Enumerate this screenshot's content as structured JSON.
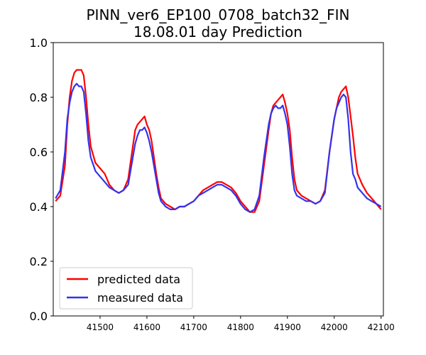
{
  "chart_data": {
    "type": "line",
    "title": "PINN_ver6_EP100_0708_batch32_FIN",
    "subtitle": "18.08.01 day Prediction",
    "xlabel": "",
    "ylabel": "",
    "xlim": [
      41400,
      42105
    ],
    "ylim": [
      0.0,
      1.0
    ],
    "xticks": [
      41500,
      41600,
      41700,
      41800,
      41900,
      42000,
      42100
    ],
    "yticks": [
      0.0,
      0.2,
      0.4,
      0.6,
      0.8,
      1.0
    ],
    "ytick_labels": [
      "0.0",
      "0.2",
      "0.4",
      "0.6",
      "0.8",
      "1.0"
    ],
    "grid": false,
    "legend_position": "lower-left",
    "series": [
      {
        "name": "predicted data",
        "color": "#ff0000",
        "x": [
          41405,
          41415,
          41425,
          41430,
          41435,
          41440,
          41445,
          41450,
          41455,
          41460,
          41465,
          41470,
          41475,
          41480,
          41490,
          41500,
          41510,
          41520,
          41530,
          41540,
          41550,
          41560,
          41570,
          41575,
          41580,
          41585,
          41590,
          41595,
          41600,
          41605,
          41610,
          41615,
          41620,
          41625,
          41630,
          41640,
          41650,
          41660,
          41670,
          41680,
          41690,
          41700,
          41710,
          41720,
          41730,
          41740,
          41750,
          41760,
          41770,
          41780,
          41790,
          41800,
          41810,
          41820,
          41830,
          41840,
          41850,
          41860,
          41865,
          41870,
          41875,
          41880,
          41885,
          41890,
          41895,
          41900,
          41905,
          41910,
          41915,
          41920,
          41930,
          41940,
          41950,
          41960,
          41970,
          41980,
          41990,
          42000,
          42005,
          42010,
          42015,
          42020,
          42025,
          42030,
          42035,
          42040,
          42045,
          42050,
          42060,
          42070,
          42080,
          42090,
          42100
        ],
        "y": [
          0.42,
          0.44,
          0.55,
          0.7,
          0.8,
          0.86,
          0.89,
          0.9,
          0.9,
          0.9,
          0.88,
          0.8,
          0.7,
          0.62,
          0.56,
          0.54,
          0.52,
          0.48,
          0.46,
          0.45,
          0.46,
          0.5,
          0.62,
          0.68,
          0.7,
          0.71,
          0.72,
          0.73,
          0.7,
          0.68,
          0.64,
          0.58,
          0.52,
          0.47,
          0.43,
          0.41,
          0.4,
          0.39,
          0.4,
          0.4,
          0.41,
          0.42,
          0.44,
          0.46,
          0.47,
          0.48,
          0.49,
          0.49,
          0.48,
          0.47,
          0.45,
          0.42,
          0.4,
          0.38,
          0.38,
          0.42,
          0.55,
          0.68,
          0.74,
          0.77,
          0.78,
          0.79,
          0.8,
          0.81,
          0.78,
          0.74,
          0.68,
          0.58,
          0.5,
          0.46,
          0.44,
          0.43,
          0.42,
          0.41,
          0.42,
          0.46,
          0.6,
          0.72,
          0.76,
          0.8,
          0.82,
          0.83,
          0.84,
          0.8,
          0.73,
          0.66,
          0.58,
          0.52,
          0.48,
          0.45,
          0.43,
          0.41,
          0.39
        ]
      },
      {
        "name": "measured data",
        "color": "#3333ee",
        "x": [
          41405,
          41415,
          41425,
          41430,
          41435,
          41440,
          41445,
          41450,
          41455,
          41460,
          41465,
          41470,
          41475,
          41480,
          41490,
          41500,
          41510,
          41520,
          41530,
          41540,
          41550,
          41560,
          41570,
          41575,
          41580,
          41585,
          41590,
          41595,
          41600,
          41605,
          41610,
          41615,
          41620,
          41625,
          41630,
          41640,
          41650,
          41660,
          41670,
          41680,
          41690,
          41700,
          41710,
          41720,
          41730,
          41740,
          41750,
          41760,
          41770,
          41780,
          41790,
          41800,
          41810,
          41820,
          41830,
          41840,
          41850,
          41860,
          41865,
          41870,
          41875,
          41880,
          41885,
          41890,
          41895,
          41900,
          41905,
          41910,
          41915,
          41920,
          41930,
          41940,
          41950,
          41960,
          41970,
          41980,
          41990,
          42000,
          42005,
          42010,
          42015,
          42020,
          42025,
          42030,
          42035,
          42040,
          42045,
          42050,
          42060,
          42070,
          42080,
          42090,
          42100
        ],
        "y": [
          0.43,
          0.46,
          0.6,
          0.72,
          0.78,
          0.82,
          0.84,
          0.85,
          0.84,
          0.84,
          0.82,
          0.74,
          0.64,
          0.58,
          0.53,
          0.51,
          0.49,
          0.47,
          0.46,
          0.45,
          0.46,
          0.48,
          0.58,
          0.63,
          0.66,
          0.68,
          0.68,
          0.69,
          0.67,
          0.64,
          0.6,
          0.55,
          0.5,
          0.45,
          0.42,
          0.4,
          0.39,
          0.39,
          0.4,
          0.4,
          0.41,
          0.42,
          0.44,
          0.45,
          0.46,
          0.47,
          0.48,
          0.48,
          0.47,
          0.46,
          0.44,
          0.41,
          0.39,
          0.38,
          0.39,
          0.44,
          0.58,
          0.7,
          0.74,
          0.76,
          0.77,
          0.76,
          0.76,
          0.77,
          0.74,
          0.7,
          0.62,
          0.52,
          0.46,
          0.44,
          0.43,
          0.42,
          0.42,
          0.41,
          0.42,
          0.45,
          0.6,
          0.72,
          0.76,
          0.78,
          0.8,
          0.81,
          0.8,
          0.72,
          0.6,
          0.52,
          0.5,
          0.47,
          0.45,
          0.43,
          0.42,
          0.41,
          0.4
        ]
      }
    ]
  }
}
